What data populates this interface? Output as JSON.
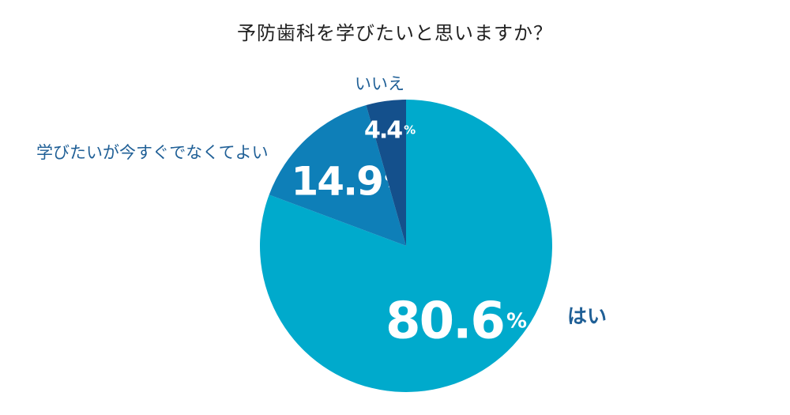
{
  "chart_data": {
    "type": "pie",
    "title": "予防歯科を学びたいと思いますか？",
    "unit": "%",
    "slices": [
      {
        "label": "はい",
        "value": 80.6,
        "display": "80.6",
        "color": "#00aacc"
      },
      {
        "label": "学びたいが今すぐでなくてよい",
        "value": 14.9,
        "display": "14.9",
        "color": "#0e7fb8"
      },
      {
        "label": "いいえ",
        "value": 4.4,
        "display": "4.4",
        "color": "#14508c"
      }
    ],
    "start": "12 o'clock",
    "direction": "clockwise",
    "legend": "none",
    "label_color": "#1f5f96"
  }
}
